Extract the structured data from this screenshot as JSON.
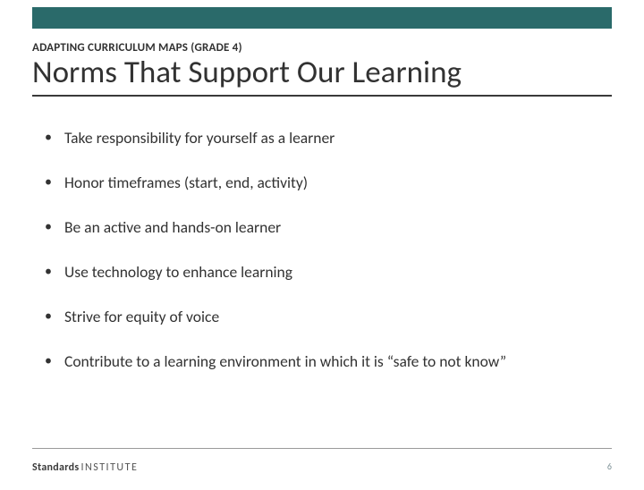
{
  "colors": {
    "top_bar": "#2a6a6a",
    "text_dark": "#323232",
    "title_underline": "#3a3a3a",
    "footer_line": "#9a9a9a",
    "logo_bold": "#3a3a3a",
    "logo_light": "#555555",
    "page_number": "#7a8f94",
    "bullet_text": "#323232",
    "background": "#ffffff"
  },
  "eyebrow": "ADAPTING CURRICULUM MAPS (GRADE 4)",
  "title": "Norms That Support Our Learning",
  "bullets": [
    "Take responsibility for yourself as a learner",
    "Honor timeframes (start, end, activity)",
    "Be an active and hands-on learner",
    "Use technology to enhance learning",
    "Strive for equity of voice",
    "Contribute to a learning environment in which it is “safe to not know”"
  ],
  "footer": {
    "logo_bold": "Standards",
    "logo_light": "INSTITUTE",
    "page_number": "6"
  },
  "typography": {
    "eyebrow_fontsize": 13,
    "title_fontsize": 35,
    "bullet_fontsize": 17.5,
    "logo_fontsize": 12,
    "pagenum_fontsize": 10
  }
}
